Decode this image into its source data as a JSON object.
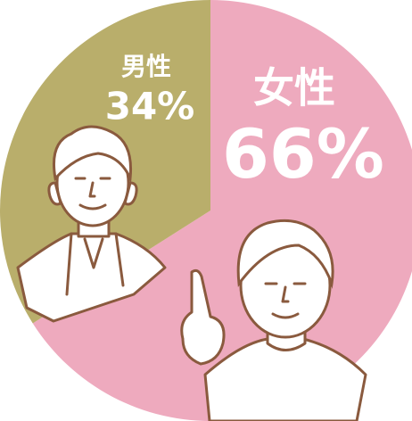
{
  "chart_data": {
    "type": "pie",
    "categories": [
      "女性",
      "男性"
    ],
    "values": [
      66,
      34
    ],
    "value_labels": [
      "66%",
      "34%"
    ],
    "colors": [
      "#eeaabe",
      "#b9ae6b"
    ]
  }
}
